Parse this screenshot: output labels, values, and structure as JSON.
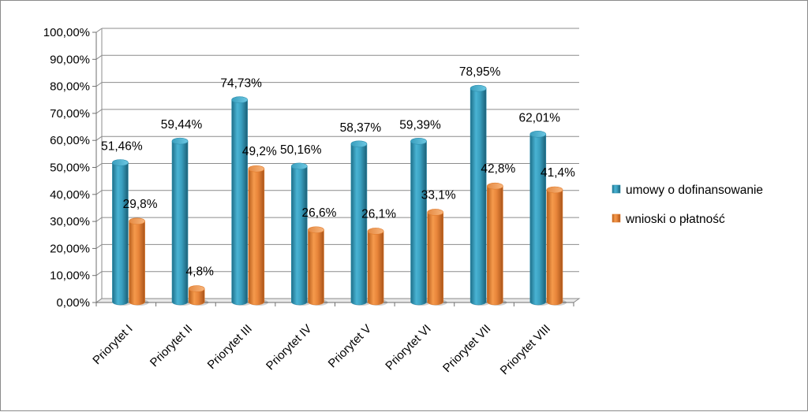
{
  "chart_data": {
    "type": "bar",
    "categories": [
      "Priorytet I",
      "Priorytet II",
      "Priorytet III",
      "Priorytet IV",
      "Priorytet V",
      "Priorytet VI",
      "Priorytet VII",
      "Priorytet VIII"
    ],
    "series": [
      {
        "name": "umowy o dofinansowanie",
        "values": [
          51.46,
          59.44,
          74.73,
          50.16,
          58.37,
          59.39,
          78.95,
          62.01
        ],
        "labels": [
          "51,46%",
          "59,44%",
          "74,73%",
          "50,16%",
          "58,37%",
          "59,39%",
          "78,95%",
          "62,01%"
        ],
        "color": "#2f8fae"
      },
      {
        "name": "wnioski o płatność",
        "values": [
          29.8,
          4.8,
          49.2,
          26.6,
          26.1,
          33.1,
          42.8,
          41.4
        ],
        "labels": [
          "29,8%",
          "4,8%",
          "49,2%",
          "26,6%",
          "26,1%",
          "33,1%",
          "42,8%",
          "41,4%"
        ],
        "color": "#e07c2e"
      }
    ],
    "y_ticks": [
      "0,00%",
      "10,00%",
      "20,00%",
      "30,00%",
      "40,00%",
      "50,00%",
      "60,00%",
      "70,00%",
      "80,00%",
      "90,00%",
      "100,00%"
    ],
    "ylim": [
      0,
      100
    ],
    "grid": true,
    "legend_position": "right",
    "bar_style": "3d-cylinder"
  }
}
